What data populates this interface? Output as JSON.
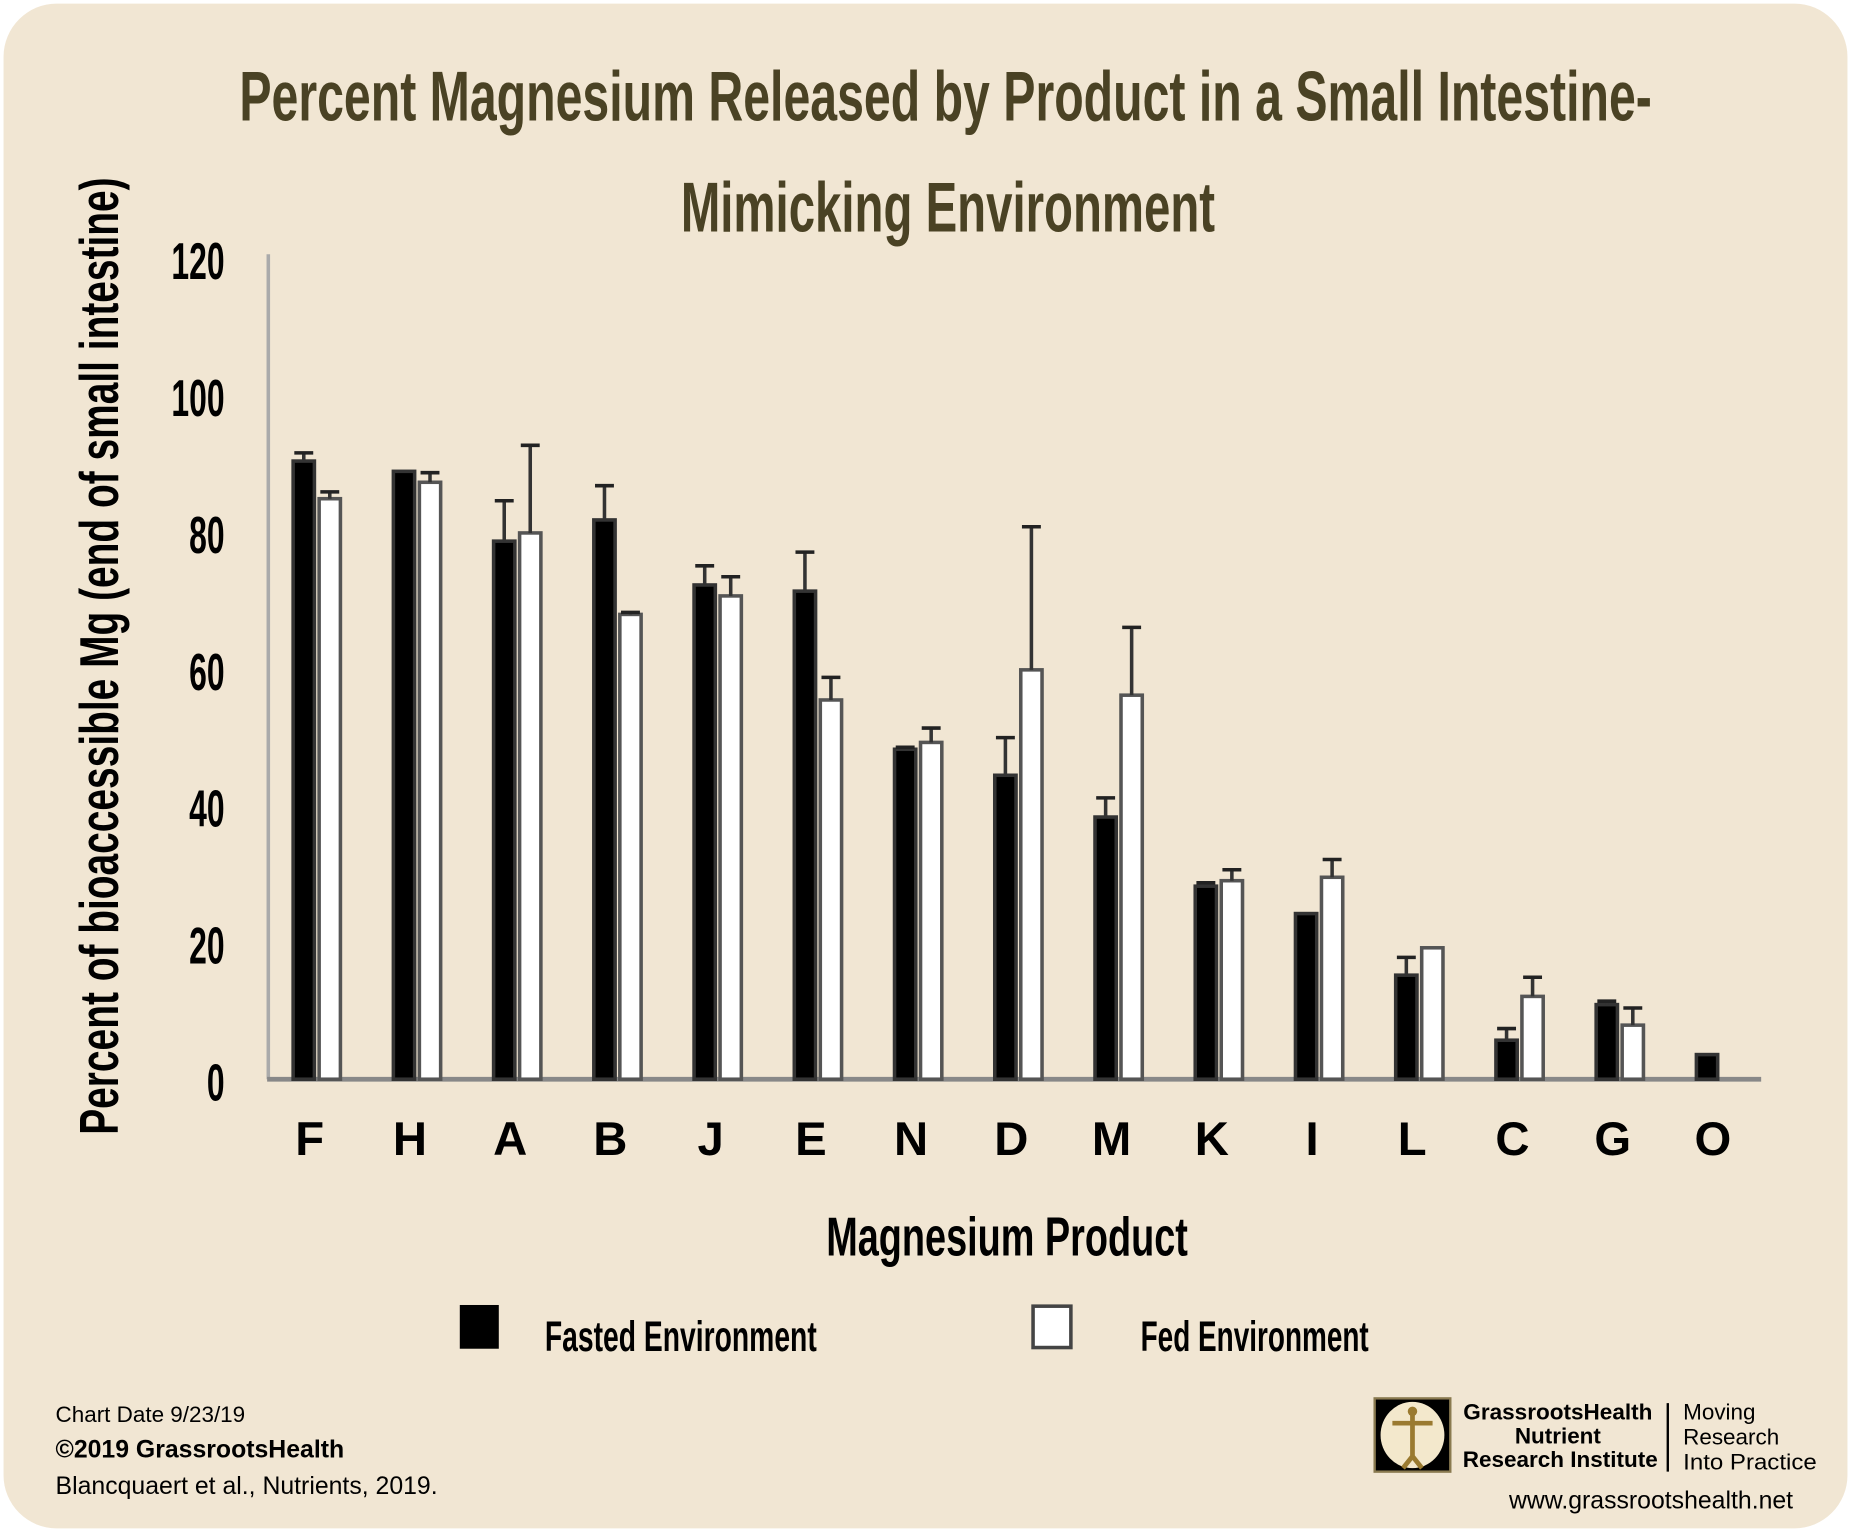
{
  "colors": {
    "background": "#f1e6d3",
    "title": "#4a4224",
    "fasted": "#000000",
    "fed": "#ffffff",
    "outline": "#555555"
  },
  "chart_data": {
    "type": "bar",
    "title_line1": "Percent Magnesium Released by Product in a Small Intestine-",
    "title_line2": "Mimicking Environment",
    "xlabel": "Magnesium Product",
    "ylabel": "Percent of bioaccessible Mg (end of small intestine)",
    "ylim": [
      0,
      120
    ],
    "yticks": [
      "0",
      "20",
      "40",
      "60",
      "80",
      "100",
      "120"
    ],
    "grid": false,
    "legend_placement": "bottom",
    "categories": [
      "F",
      "H",
      "A",
      "B",
      "J",
      "E",
      "N",
      "D",
      "M",
      "K",
      "I",
      "L",
      "C",
      "G",
      "O"
    ],
    "series": [
      {
        "name": "Fasted Environment",
        "values": [
          90.3,
          88.8,
          78.6,
          81.7,
          72.2,
          71.3,
          48.2,
          44.4,
          38.3,
          28.2,
          24.2,
          15.2,
          5.7,
          10.9,
          3.6
        ],
        "error_upper": [
          91.5,
          88.8,
          84.5,
          86.7,
          75.0,
          77.0,
          48.5,
          49.9,
          41.1,
          28.7,
          24.2,
          17.8,
          7.4,
          11.4,
          3.6
        ]
      },
      {
        "name": "Fed Environment",
        "values": [
          84.8,
          87.2,
          79.8,
          67.9,
          70.6,
          55.4,
          49.2,
          59.8,
          56.1,
          29.0,
          29.5,
          19.2,
          12.1,
          7.9,
          null
        ],
        "error_upper": [
          85.8,
          88.6,
          92.6,
          68.2,
          73.4,
          58.7,
          51.3,
          80.7,
          66.0,
          30.6,
          32.1,
          19.2,
          14.9,
          10.4,
          null
        ]
      }
    ]
  },
  "footer": {
    "chart_date": "Chart Date 9/23/19",
    "copyright": "©2019 GrassrootsHealth",
    "citation": "Blancquaert et al., Nutrients, 2019.",
    "logo_line1": "GrassrootsHealth",
    "logo_line2": "Nutrient",
    "logo_line3": "Research Institute",
    "tagline1": "Moving",
    "tagline2": "Research",
    "tagline3": "Into Practice",
    "website": "www.grassrootshealth.net"
  }
}
